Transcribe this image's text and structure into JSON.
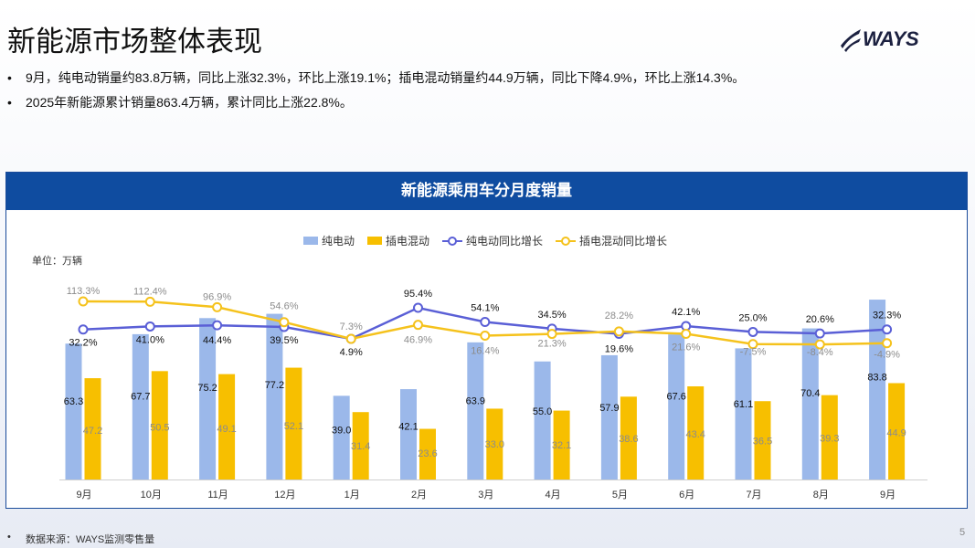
{
  "page": {
    "title": "新能源市场整体表现",
    "logo_text": "WAYS",
    "bullets": [
      "9月，纯电动销量约83.8万辆，同比上涨32.3%，环比上涨19.1%；插电混动销量约44.9万辆，同比下降4.9%，环比上涨14.3%。",
      "2025年新能源累计销量863.4万辆，累计同比上涨22.8%。"
    ],
    "bullet_symbol": "•",
    "footer": "数据来源：WAYS监测零售量",
    "page_number": "5"
  },
  "colors": {
    "bev": "#9bb8ea",
    "phev": "#f7bf00",
    "bev_line": "#5a5fd6",
    "phev_line": "#f5c21c",
    "header": "#0f4ca0"
  },
  "chart_data": {
    "type": "bar",
    "title": "新能源乘用车分月度销量",
    "unit": "单位：万辆",
    "categories": [
      "9月",
      "10月",
      "11月",
      "12月",
      "1月",
      "2月",
      "3月",
      "4月",
      "5月",
      "6月",
      "7月",
      "8月",
      "9月"
    ],
    "series": [
      {
        "name": "纯电动",
        "type": "bar",
        "values": [
          63.3,
          67.7,
          75.2,
          77.2,
          39.0,
          42.1,
          63.9,
          55.0,
          57.9,
          67.6,
          61.1,
          70.4,
          83.8
        ],
        "labels": [
          "63.3",
          "67.7",
          "75.2",
          "77.2",
          "39.0",
          "42.1",
          "63.9",
          "55.0",
          "57.9",
          "67.6",
          "61.1",
          "70.4",
          "83.8"
        ]
      },
      {
        "name": "插电混动",
        "type": "bar",
        "values": [
          47.2,
          50.5,
          49.1,
          52.1,
          31.4,
          23.6,
          33.0,
          32.1,
          38.6,
          43.4,
          36.5,
          39.3,
          44.9
        ],
        "labels": [
          "47.2",
          "50.5",
          "49.1",
          "52.1",
          "31.4",
          "23.6",
          "33.0",
          "32.1",
          "38.6",
          "43.4",
          "36.5",
          "39.3",
          "44.9"
        ]
      },
      {
        "name": "纯电动同比增长",
        "type": "line",
        "values": [
          32.2,
          41.0,
          44.4,
          39.5,
          4.9,
          95.4,
          54.1,
          34.5,
          19.6,
          42.1,
          25.0,
          20.6,
          32.3
        ],
        "labels": [
          "32.2%",
          "41.0%",
          "44.4%",
          "39.5%",
          "4.9%",
          "95.4%",
          "54.1%",
          "34.5%",
          "19.6%",
          "42.1%",
          "25.0%",
          "20.6%",
          "32.3%"
        ]
      },
      {
        "name": "插电混动同比增长",
        "type": "line",
        "values": [
          113.3,
          112.4,
          96.9,
          54.6,
          7.3,
          46.9,
          16.4,
          21.3,
          28.2,
          21.6,
          -7.5,
          -8.4,
          -4.9
        ],
        "labels": [
          "113.3%",
          "112.4%",
          "96.9%",
          "54.6%",
          "7.3%",
          "46.9%",
          "16.4%",
          "21.3%",
          "28.2%",
          "21.6%",
          "-7.5%",
          "-8.4%",
          "-4.9%"
        ]
      }
    ],
    "legend_position": "top-center"
  }
}
